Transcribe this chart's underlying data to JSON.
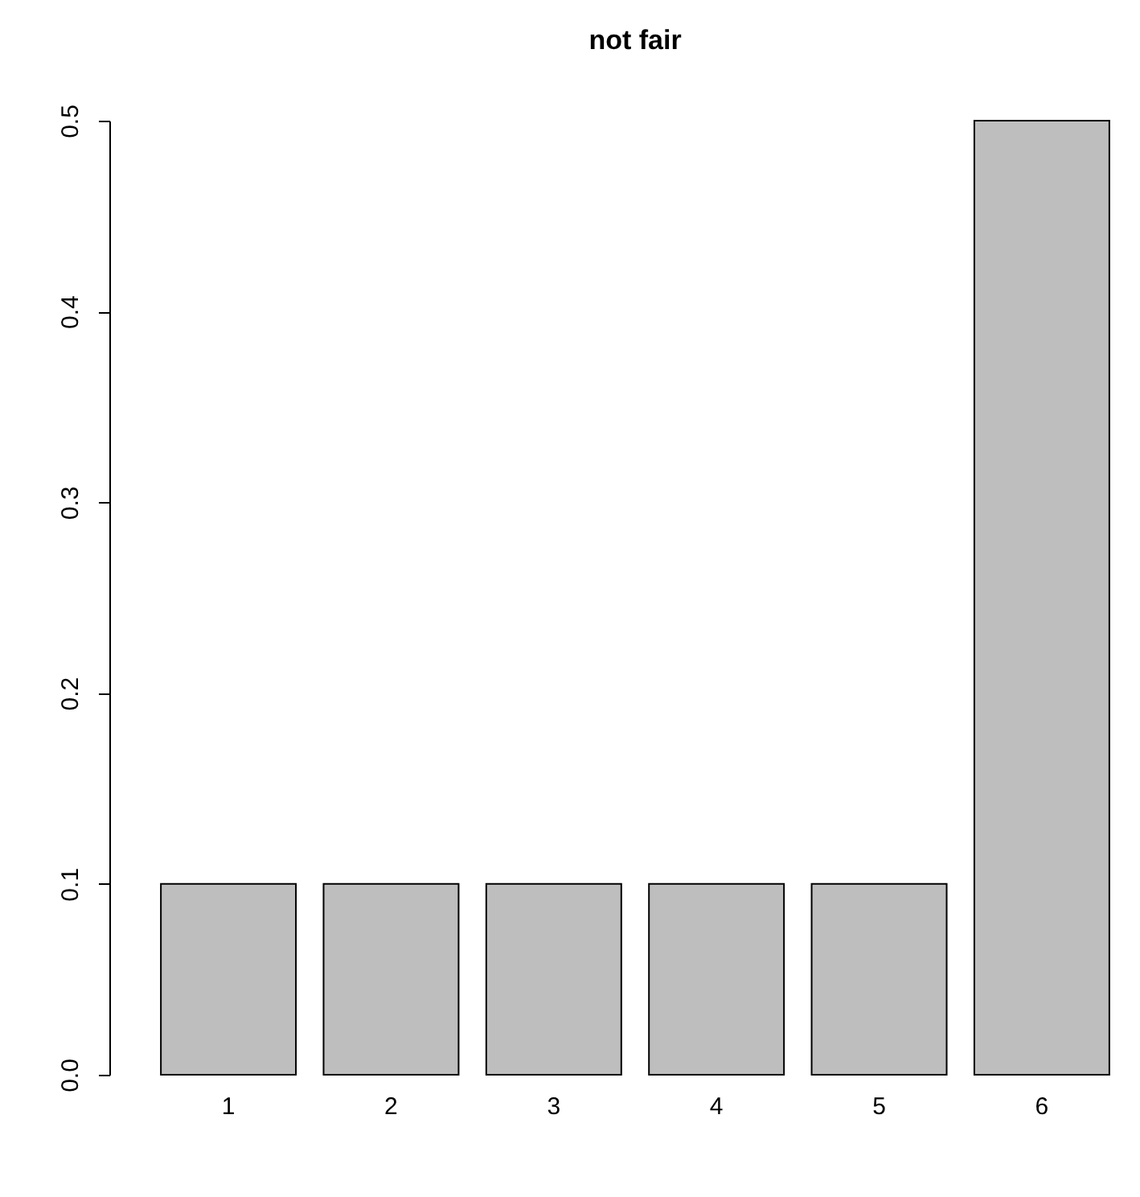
{
  "chart_data": {
    "type": "bar",
    "title": "not fair",
    "categories": [
      "1",
      "2",
      "3",
      "4",
      "5",
      "6"
    ],
    "values": [
      0.1,
      0.1,
      0.1,
      0.1,
      0.1,
      0.5
    ],
    "color": "#bebebe",
    "ylim": [
      0,
      0.5
    ],
    "yticks": [
      {
        "value": 0,
        "label": "0.0"
      },
      0.1,
      0.2,
      0.3,
      0.4,
      0.5
    ],
    "grid": false
  }
}
